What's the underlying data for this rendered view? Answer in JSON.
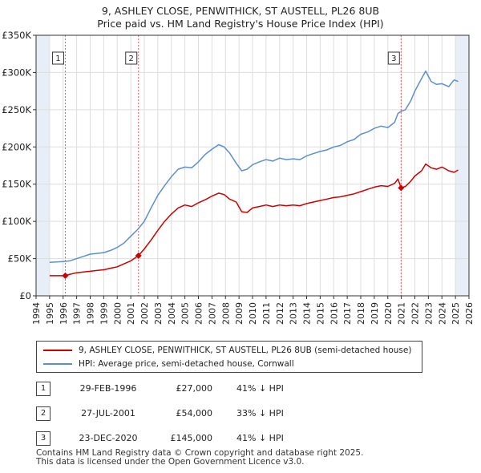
{
  "title_line1": "9, ASHLEY CLOSE, PENWITHICK, ST AUSTELL, PL26 8UB",
  "title_line2": "Price paid vs. HM Land Registry's House Price Index (HPI)",
  "colors": {
    "price": "#cc0000",
    "hpi": "#5b8fd0",
    "grid": "#dddddd",
    "shade": "#e8eef7",
    "vline": "#e06060"
  },
  "chart_data": {
    "type": "line",
    "title": "Price paid vs. HM Land Registry's House Price Index (HPI)",
    "xlim": [
      1994,
      2026
    ],
    "ylim": [
      0,
      350000
    ],
    "x_ticks": [
      1994,
      1995,
      1996,
      1997,
      1998,
      1999,
      2000,
      2001,
      2002,
      2003,
      2004,
      2005,
      2006,
      2007,
      2008,
      2009,
      2010,
      2011,
      2012,
      2013,
      2014,
      2015,
      2016,
      2017,
      2018,
      2019,
      2020,
      2021,
      2022,
      2023,
      2024,
      2025,
      2026
    ],
    "y_ticks": [
      0,
      50000,
      100000,
      150000,
      200000,
      250000,
      300000,
      350000
    ],
    "y_tick_labels": [
      "£0",
      "£50K",
      "£100K",
      "£150K",
      "£200K",
      "£250K",
      "£300K",
      "£350K"
    ],
    "shaded_ranges": [
      [
        1994,
        1995
      ],
      [
        2025,
        2026
      ]
    ],
    "series": [
      {
        "name": "9, ASHLEY CLOSE, PENWITHICK, ST AUSTELL, PL26 8UB (semi-detached house)",
        "color": "#cc0000",
        "x": [
          1995.0,
          1995.5,
          1996.16,
          1996.5,
          1997.0,
          1997.5,
          1998.0,
          1998.5,
          1999.0,
          1999.5,
          2000.0,
          2000.5,
          2001.0,
          2001.57,
          2002.0,
          2002.5,
          2003.0,
          2003.5,
          2004.0,
          2004.5,
          2005.0,
          2005.5,
          2006.0,
          2006.5,
          2007.0,
          2007.5,
          2007.9,
          2008.3,
          2008.8,
          2009.2,
          2009.6,
          2010.0,
          2010.5,
          2011.0,
          2011.5,
          2012.0,
          2012.5,
          2013.0,
          2013.5,
          2014.0,
          2014.5,
          2015.0,
          2015.5,
          2016.0,
          2016.5,
          2017.0,
          2017.5,
          2018.0,
          2018.5,
          2019.0,
          2019.5,
          2020.0,
          2020.5,
          2020.75,
          2020.98,
          2021.3,
          2021.7,
          2022.0,
          2022.5,
          2022.8,
          2023.2,
          2023.6,
          2024.0,
          2024.5,
          2024.9,
          2025.2
        ],
        "values": [
          27000,
          27000,
          27000,
          29000,
          31000,
          32000,
          33000,
          34000,
          35000,
          37000,
          39000,
          43000,
          47000,
          54000,
          63000,
          75000,
          88000,
          100000,
          110000,
          118000,
          122000,
          120000,
          125000,
          129000,
          134000,
          138000,
          136000,
          130000,
          126000,
          113000,
          112000,
          118000,
          120000,
          122000,
          120000,
          122000,
          121000,
          122000,
          121000,
          124000,
          126000,
          128000,
          130000,
          132000,
          133000,
          135000,
          137000,
          140000,
          143000,
          146000,
          148000,
          147000,
          151000,
          157000,
          145000,
          147000,
          154000,
          161000,
          168000,
          177000,
          172000,
          170000,
          173000,
          168000,
          166000,
          169000
        ]
      },
      {
        "name": "HPI: Average price, semi-detached house, Cornwall",
        "color": "#5b8fd0",
        "x": [
          1995.0,
          1995.5,
          1996.0,
          1996.5,
          1997.0,
          1997.5,
          1998.0,
          1998.5,
          1999.0,
          1999.5,
          2000.0,
          2000.5,
          2001.0,
          2001.5,
          2002.0,
          2002.5,
          2003.0,
          2003.5,
          2004.0,
          2004.5,
          2005.0,
          2005.5,
          2006.0,
          2006.5,
          2007.0,
          2007.5,
          2007.9,
          2008.3,
          2008.8,
          2009.2,
          2009.6,
          2010.0,
          2010.5,
          2011.0,
          2011.5,
          2012.0,
          2012.5,
          2013.0,
          2013.5,
          2014.0,
          2014.5,
          2015.0,
          2015.5,
          2016.0,
          2016.5,
          2017.0,
          2017.5,
          2018.0,
          2018.5,
          2019.0,
          2019.5,
          2020.0,
          2020.5,
          2020.75,
          2021.0,
          2021.3,
          2021.7,
          2022.0,
          2022.5,
          2022.8,
          2023.2,
          2023.6,
          2024.0,
          2024.5,
          2024.9,
          2025.2
        ],
        "values": [
          45000,
          45500,
          46000,
          47000,
          50000,
          53000,
          56000,
          57000,
          58000,
          61000,
          65000,
          71000,
          80000,
          89000,
          100000,
          118000,
          135000,
          148000,
          160000,
          170000,
          173000,
          172000,
          180000,
          190000,
          197000,
          203000,
          200000,
          192000,
          178000,
          168000,
          170000,
          176000,
          180000,
          183000,
          181000,
          185000,
          183000,
          184000,
          183000,
          188000,
          191000,
          194000,
          196000,
          200000,
          202000,
          207000,
          210000,
          217000,
          220000,
          225000,
          228000,
          226000,
          233000,
          245000,
          248000,
          250000,
          262000,
          275000,
          292000,
          302000,
          288000,
          284000,
          285000,
          281000,
          290000,
          288000
        ]
      }
    ],
    "markers": [
      {
        "label": "1",
        "x": 1996.16,
        "y": 27000
      },
      {
        "label": "2",
        "x": 2001.57,
        "y": 54000
      },
      {
        "label": "3",
        "x": 2020.98,
        "y": 145000
      }
    ]
  },
  "legend": {
    "price_label": "9, ASHLEY CLOSE, PENWITHICK, ST AUSTELL, PL26 8UB (semi-detached house)",
    "hpi_label": "HPI: Average price, semi-detached house, Cornwall"
  },
  "transactions": [
    {
      "num": "1",
      "date": "29-FEB-1996",
      "price": "£27,000",
      "hpi": "41% ↓ HPI"
    },
    {
      "num": "2",
      "date": "27-JUL-2001",
      "price": "£54,000",
      "hpi": "33% ↓ HPI"
    },
    {
      "num": "3",
      "date": "23-DEC-2020",
      "price": "£145,000",
      "hpi": "41% ↓ HPI"
    }
  ],
  "footer": {
    "line1": "Contains HM Land Registry data © Crown copyright and database right 2025.",
    "line2": "This data is licensed under the Open Government Licence v3.0."
  }
}
